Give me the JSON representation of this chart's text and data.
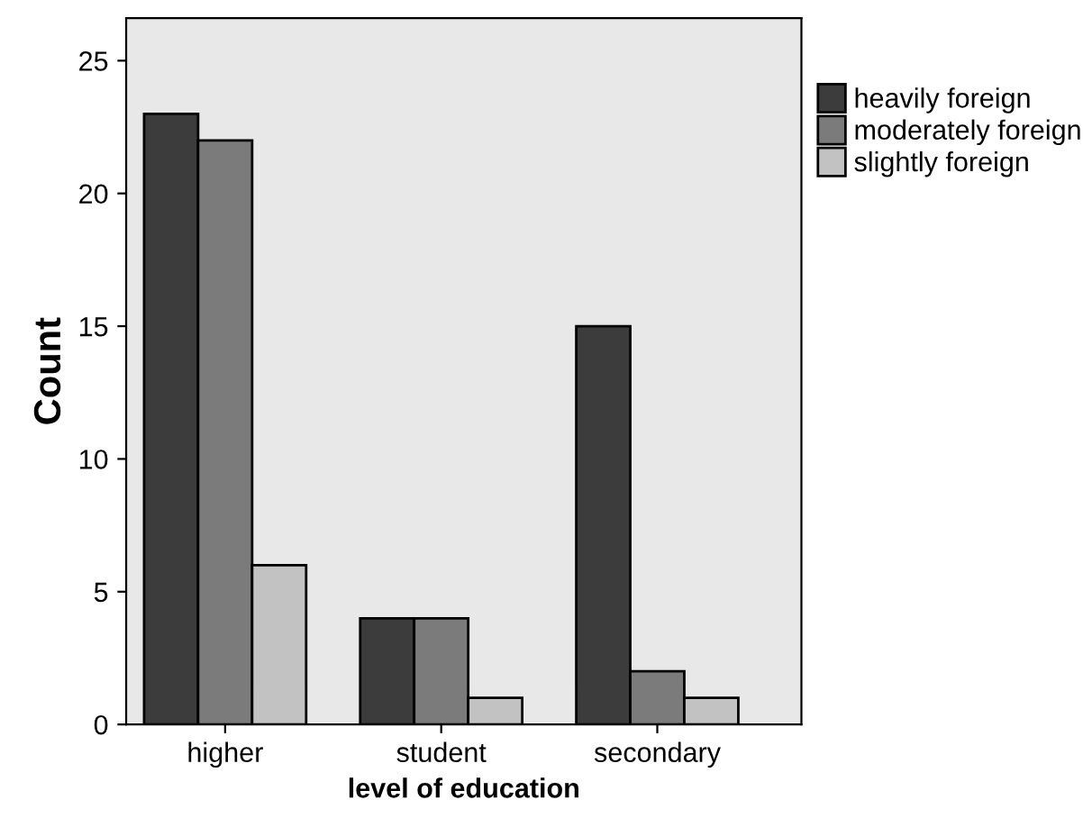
{
  "chart_data": {
    "type": "bar",
    "xlabel": "level of education",
    "ylabel": "Count",
    "categories": [
      "higher",
      "student",
      "secondary"
    ],
    "series": [
      {
        "name": "heavily foreign",
        "color": "#3c3c3c",
        "values": [
          23,
          4,
          15
        ]
      },
      {
        "name": "moderately foreign",
        "color": "#7b7b7b",
        "values": [
          22,
          4,
          2
        ]
      },
      {
        "name": "slightly foreign",
        "color": "#c2c2c2",
        "values": [
          6,
          1,
          1
        ]
      }
    ],
    "ylim": [
      0,
      26.6
    ],
    "yticks": [
      0,
      5,
      10,
      15,
      20,
      25
    ],
    "grid": false,
    "legend": "top right"
  }
}
